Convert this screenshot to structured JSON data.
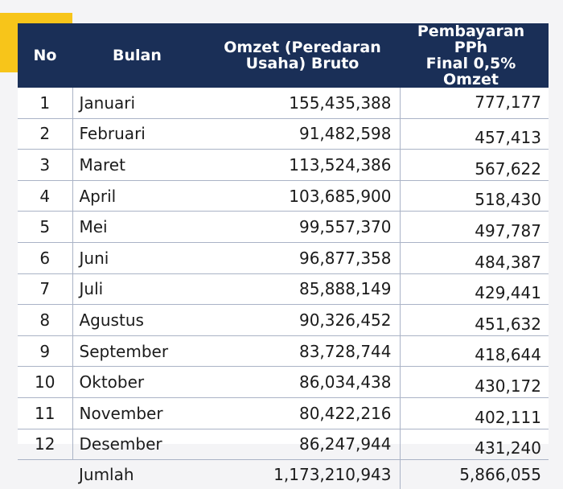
{
  "accent_color": "#f7c51a",
  "header_color": "#1a2f57",
  "table": {
    "headers": {
      "no": "No",
      "bulan": "Bulan",
      "omzet_line1": "Omzet (Peredaran",
      "omzet_line2": "Usaha) Bruto",
      "pph_line1": "Pembayaran PPh",
      "pph_line2": "Final 0,5% Omzet"
    },
    "rows": [
      {
        "no": "1",
        "bulan": "Januari",
        "omzet": "155,435,388",
        "pph": "777,177"
      },
      {
        "no": "2",
        "bulan": "Februari",
        "omzet": "91,482,598",
        "pph": "457,413"
      },
      {
        "no": "3",
        "bulan": "Maret",
        "omzet": "113,524,386",
        "pph": "567,622"
      },
      {
        "no": "4",
        "bulan": "April",
        "omzet": "103,685,900",
        "pph": "518,430"
      },
      {
        "no": "5",
        "bulan": "Mei",
        "omzet": "99,557,370",
        "pph": "497,787"
      },
      {
        "no": "6",
        "bulan": "Juni",
        "omzet": "96,877,358",
        "pph": "484,387"
      },
      {
        "no": "7",
        "bulan": "Juli",
        "omzet": "85,888,149",
        "pph": "429,441"
      },
      {
        "no": "8",
        "bulan": "Agustus",
        "omzet": "90,326,452",
        "pph": "451,632"
      },
      {
        "no": "9",
        "bulan": "September",
        "omzet": "83,728,744",
        "pph": "418,644"
      },
      {
        "no": "10",
        "bulan": "Oktober",
        "omzet": "86,034,438",
        "pph": "430,172"
      },
      {
        "no": "11",
        "bulan": "November",
        "omzet": "80,422,216",
        "pph": "402,111"
      },
      {
        "no": "12",
        "bulan": "Desember",
        "omzet": "86,247,944",
        "pph": "431,240"
      }
    ],
    "total": {
      "label": "Jumlah",
      "omzet": "1,173,210,943",
      "pph": "5,866,055"
    }
  }
}
